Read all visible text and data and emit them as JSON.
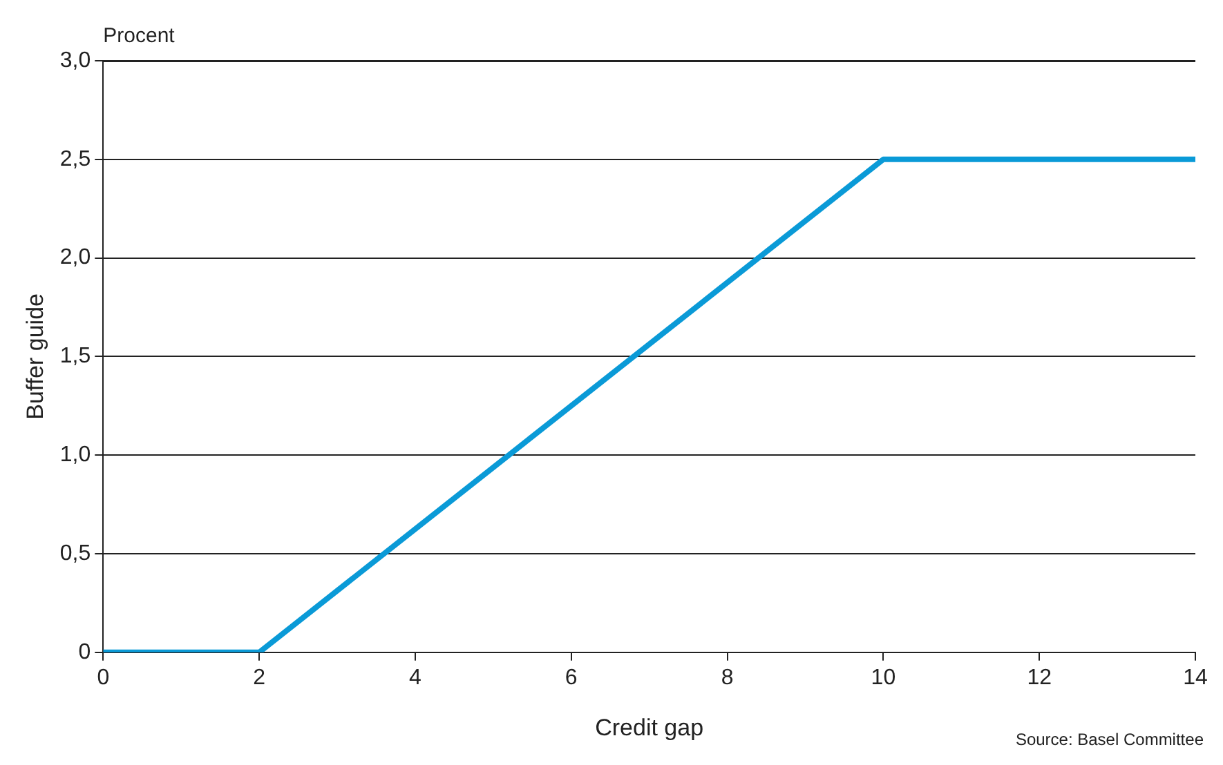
{
  "chart_data": {
    "type": "line",
    "xlabel": "Credit gap",
    "ylabel": "Buffer guide",
    "x": [
      0,
      2,
      10,
      14
    ],
    "series": [
      {
        "color": "#0a9ad7",
        "values": [
          0,
          0,
          2.5,
          2.5
        ]
      }
    ],
    "xlim": [
      0,
      14
    ],
    "xticks": [
      0,
      2,
      4,
      6,
      8,
      10,
      12,
      14
    ],
    "ylim": [
      0,
      3
    ],
    "yticks": [
      0,
      {
        "value": 0.5,
        "label": "0,5"
      },
      {
        "value": 1,
        "label": "1,0"
      },
      {
        "value": 1.5,
        "label": "1,5"
      },
      {
        "value": 2,
        "label": "2,0"
      },
      {
        "value": 2.5,
        "label": "2,5"
      },
      {
        "value": 3,
        "label": "3,0"
      }
    ],
    "grid": "y",
    "legend": false,
    "marker": "none",
    "line_style": "solid",
    "annotations": [
      "Procent",
      "Source: Basel Committee"
    ]
  }
}
